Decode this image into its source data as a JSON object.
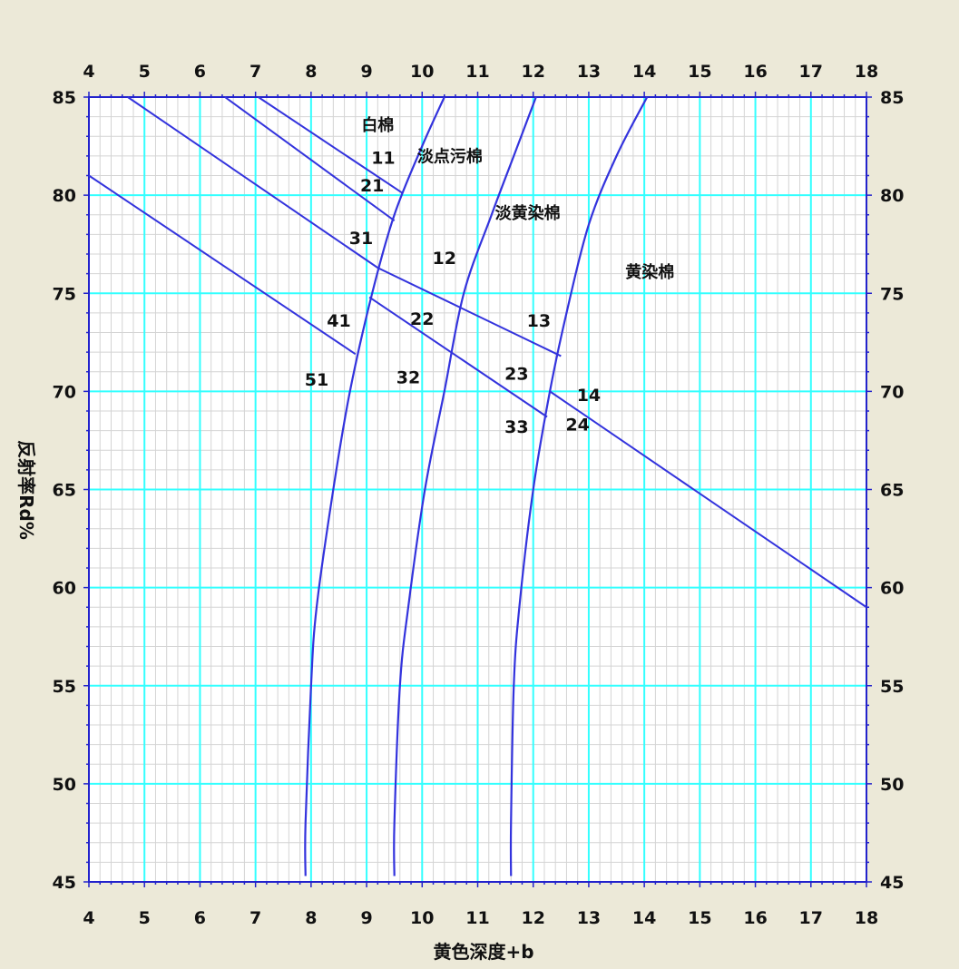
{
  "chart_data": {
    "type": "line",
    "title": "",
    "xlabel": "黄色深度+b",
    "ylabel": "反射率Rd%",
    "xlim": [
      4,
      18
    ],
    "ylim": [
      45,
      85
    ],
    "x_ticks": [
      4,
      5,
      6,
      7,
      8,
      9,
      10,
      11,
      12,
      13,
      14,
      15,
      16,
      17,
      18
    ],
    "y_ticks": [
      45,
      50,
      55,
      60,
      65,
      70,
      75,
      80,
      85
    ],
    "x_tick_labels": [
      "4",
      "5",
      "6",
      "7",
      "8",
      "9",
      "10",
      "11",
      "12",
      "13",
      "14",
      "15",
      "16",
      "17",
      "18"
    ],
    "y_tick_labels": [
      "45",
      "50",
      "55",
      "60",
      "65",
      "70",
      "75",
      "80",
      "85"
    ],
    "grid": true,
    "boundary_curves": [
      {
        "points": [
          [
            7.9,
            45.3
          ],
          [
            7.9,
            48
          ],
          [
            8.0,
            55
          ],
          [
            8.1,
            59
          ],
          [
            8.4,
            65
          ],
          [
            8.7,
            70
          ],
          [
            9.1,
            75
          ],
          [
            9.5,
            79
          ],
          [
            10.0,
            82.5
          ],
          [
            10.4,
            85
          ]
        ]
      },
      {
        "points": [
          [
            9.5,
            45.3
          ],
          [
            9.5,
            48
          ],
          [
            9.6,
            55
          ],
          [
            9.75,
            59
          ],
          [
            10.05,
            65
          ],
          [
            10.4,
            70
          ],
          [
            10.75,
            75
          ],
          [
            11.25,
            79
          ],
          [
            11.65,
            82
          ],
          [
            12.05,
            85
          ]
        ]
      },
      {
        "points": [
          [
            11.6,
            45.3
          ],
          [
            11.6,
            48
          ],
          [
            11.65,
            55
          ],
          [
            11.75,
            59
          ],
          [
            12.0,
            65
          ],
          [
            12.3,
            70
          ],
          [
            12.6,
            74
          ],
          [
            13.0,
            78.5
          ],
          [
            13.5,
            82
          ],
          [
            14.05,
            85
          ]
        ]
      }
    ],
    "division_lines": [
      {
        "points": [
          [
            7.05,
            85
          ],
          [
            9.65,
            80.1
          ]
        ]
      },
      {
        "points": [
          [
            6.45,
            85
          ],
          [
            9.5,
            78.7
          ]
        ]
      },
      {
        "points": [
          [
            4.7,
            85
          ],
          [
            9.2,
            76.3
          ],
          [
            12.5,
            71.8
          ]
        ]
      },
      {
        "points": [
          [
            4.0,
            81.0
          ],
          [
            8.8,
            71.9
          ]
        ]
      },
      {
        "points": [
          [
            9.05,
            74.8
          ],
          [
            12.25,
            68.7
          ]
        ]
      },
      {
        "points": [
          [
            12.3,
            70.0
          ],
          [
            18.0,
            59.0
          ]
        ]
      }
    ],
    "zone_labels": [
      {
        "text": "白棉",
        "x": 9.2,
        "y": 83.3
      },
      {
        "text": "淡点污棉",
        "x": 10.5,
        "y": 81.7
      },
      {
        "text": "淡黄染棉",
        "x": 11.9,
        "y": 78.8
      },
      {
        "text": "黄染棉",
        "x": 14.1,
        "y": 75.8
      }
    ],
    "grade_labels": [
      {
        "text": "11",
        "x": 9.3,
        "y": 81.6
      },
      {
        "text": "21",
        "x": 9.1,
        "y": 80.2
      },
      {
        "text": "31",
        "x": 8.9,
        "y": 77.5
      },
      {
        "text": "12",
        "x": 10.4,
        "y": 76.5
      },
      {
        "text": "41",
        "x": 8.5,
        "y": 73.3
      },
      {
        "text": "22",
        "x": 10.0,
        "y": 73.4
      },
      {
        "text": "13",
        "x": 12.1,
        "y": 73.3
      },
      {
        "text": "51",
        "x": 8.1,
        "y": 70.3
      },
      {
        "text": "32",
        "x": 9.75,
        "y": 70.4
      },
      {
        "text": "23",
        "x": 11.7,
        "y": 70.6
      },
      {
        "text": "14",
        "x": 13.0,
        "y": 69.5
      },
      {
        "text": "33",
        "x": 11.7,
        "y": 67.9
      },
      {
        "text": "24",
        "x": 12.8,
        "y": 68.0
      }
    ]
  },
  "colors": {
    "background": "#ece9d8",
    "plot_background": "#ffffff",
    "major_grid": "#33ffff",
    "minor_grid": "#d4d4d4",
    "curve": "#3333dd",
    "axis": "#2222cc",
    "text": "#111111"
  }
}
